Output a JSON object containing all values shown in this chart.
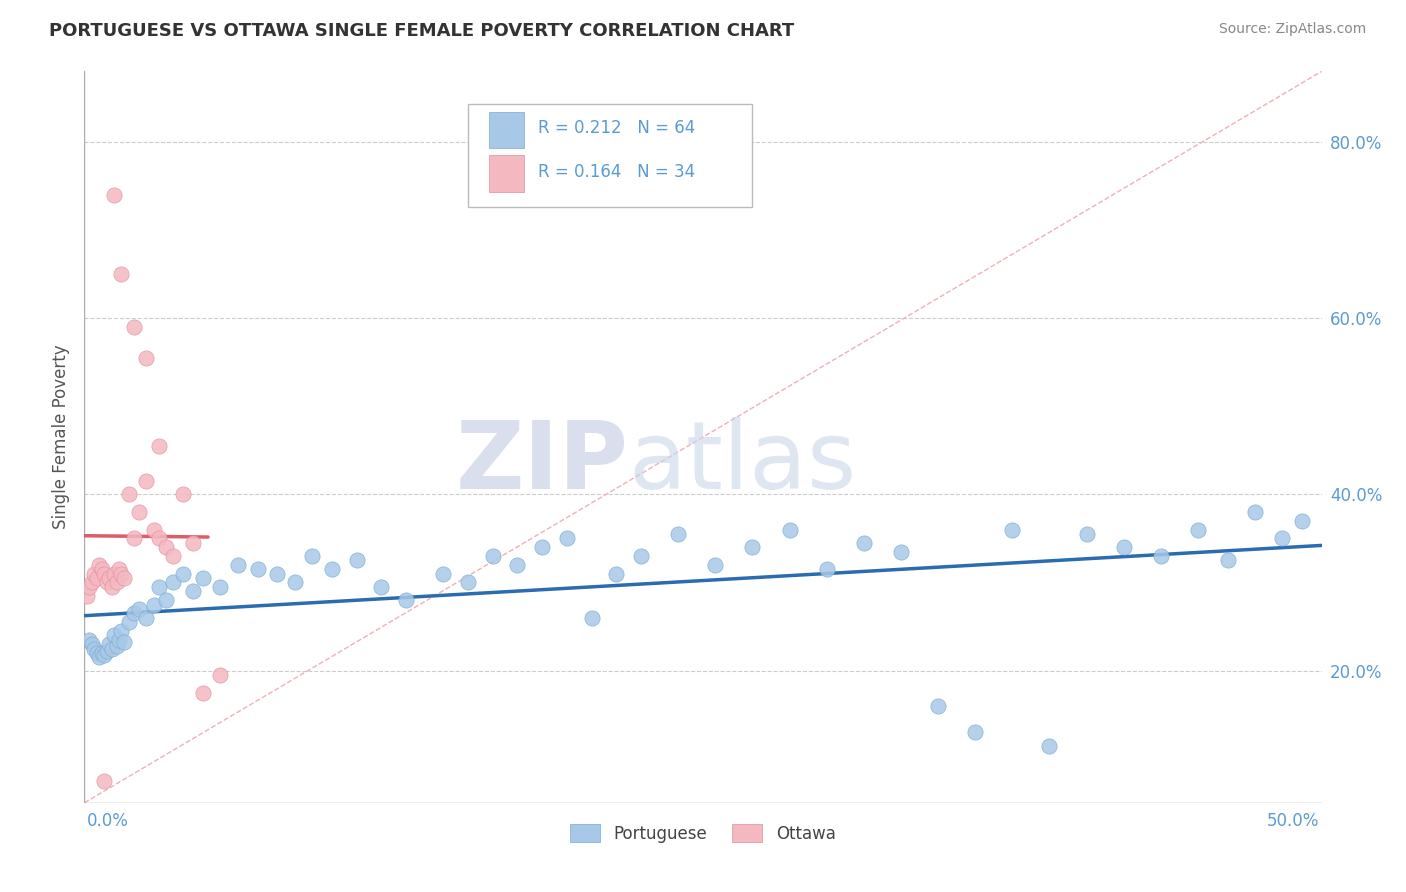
{
  "title": "PORTUGUESE VS OTTAWA SINGLE FEMALE POVERTY CORRELATION CHART",
  "source": "Source: ZipAtlas.com",
  "ylabel": "Single Female Poverty",
  "right_yticks": [
    "20.0%",
    "40.0%",
    "60.0%",
    "80.0%"
  ],
  "right_ytick_vals": [
    0.2,
    0.4,
    0.6,
    0.8
  ],
  "xlim": [
    0.0,
    0.5
  ],
  "ylim": [
    0.05,
    0.88
  ],
  "watermark_zip": "ZIP",
  "watermark_atlas": "atlas",
  "legend1_R": "0.212",
  "legend1_N": "64",
  "legend2_R": "0.164",
  "legend2_N": "34",
  "blue_color": "#a8c8e8",
  "pink_color": "#f4b8c0",
  "blue_line_color": "#2b6cb0",
  "pink_line_color": "#e05a6a",
  "dashed_line_color": "#cccccc",
  "title_color": "#333333",
  "axis_label_color": "#5b9bd5",
  "portuguese_x": [
    0.002,
    0.003,
    0.004,
    0.005,
    0.006,
    0.007,
    0.008,
    0.009,
    0.01,
    0.011,
    0.012,
    0.013,
    0.014,
    0.015,
    0.016,
    0.018,
    0.02,
    0.022,
    0.025,
    0.028,
    0.03,
    0.033,
    0.036,
    0.04,
    0.044,
    0.048,
    0.055,
    0.062,
    0.07,
    0.078,
    0.085,
    0.092,
    0.1,
    0.11,
    0.12,
    0.13,
    0.145,
    0.155,
    0.165,
    0.175,
    0.185,
    0.195,
    0.205,
    0.215,
    0.225,
    0.24,
    0.255,
    0.27,
    0.285,
    0.3,
    0.315,
    0.33,
    0.345,
    0.36,
    0.375,
    0.39,
    0.405,
    0.42,
    0.435,
    0.45,
    0.462,
    0.473,
    0.484,
    0.492
  ],
  "portuguese_y": [
    0.235,
    0.23,
    0.225,
    0.22,
    0.215,
    0.22,
    0.218,
    0.222,
    0.23,
    0.225,
    0.24,
    0.228,
    0.235,
    0.245,
    0.232,
    0.255,
    0.265,
    0.27,
    0.26,
    0.275,
    0.295,
    0.28,
    0.3,
    0.31,
    0.29,
    0.305,
    0.295,
    0.32,
    0.315,
    0.31,
    0.3,
    0.33,
    0.315,
    0.325,
    0.295,
    0.28,
    0.31,
    0.3,
    0.33,
    0.32,
    0.34,
    0.35,
    0.26,
    0.31,
    0.33,
    0.355,
    0.32,
    0.34,
    0.36,
    0.315,
    0.345,
    0.335,
    0.16,
    0.13,
    0.36,
    0.115,
    0.355,
    0.34,
    0.33,
    0.36,
    0.325,
    0.38,
    0.35,
    0.37
  ],
  "ottawa_x": [
    0.001,
    0.002,
    0.003,
    0.004,
    0.005,
    0.006,
    0.007,
    0.008,
    0.009,
    0.01,
    0.011,
    0.012,
    0.013,
    0.014,
    0.015,
    0.016,
    0.018,
    0.02,
    0.022,
    0.025,
    0.028,
    0.03,
    0.033,
    0.036,
    0.04,
    0.044,
    0.048,
    0.055,
    0.015,
    0.02,
    0.025,
    0.03,
    0.012,
    0.008
  ],
  "ottawa_y": [
    0.285,
    0.295,
    0.3,
    0.31,
    0.305,
    0.32,
    0.315,
    0.31,
    0.3,
    0.305,
    0.295,
    0.31,
    0.3,
    0.315,
    0.31,
    0.305,
    0.4,
    0.35,
    0.38,
    0.415,
    0.36,
    0.35,
    0.34,
    0.33,
    0.4,
    0.345,
    0.175,
    0.195,
    0.65,
    0.59,
    0.555,
    0.455,
    0.74,
    0.075
  ]
}
